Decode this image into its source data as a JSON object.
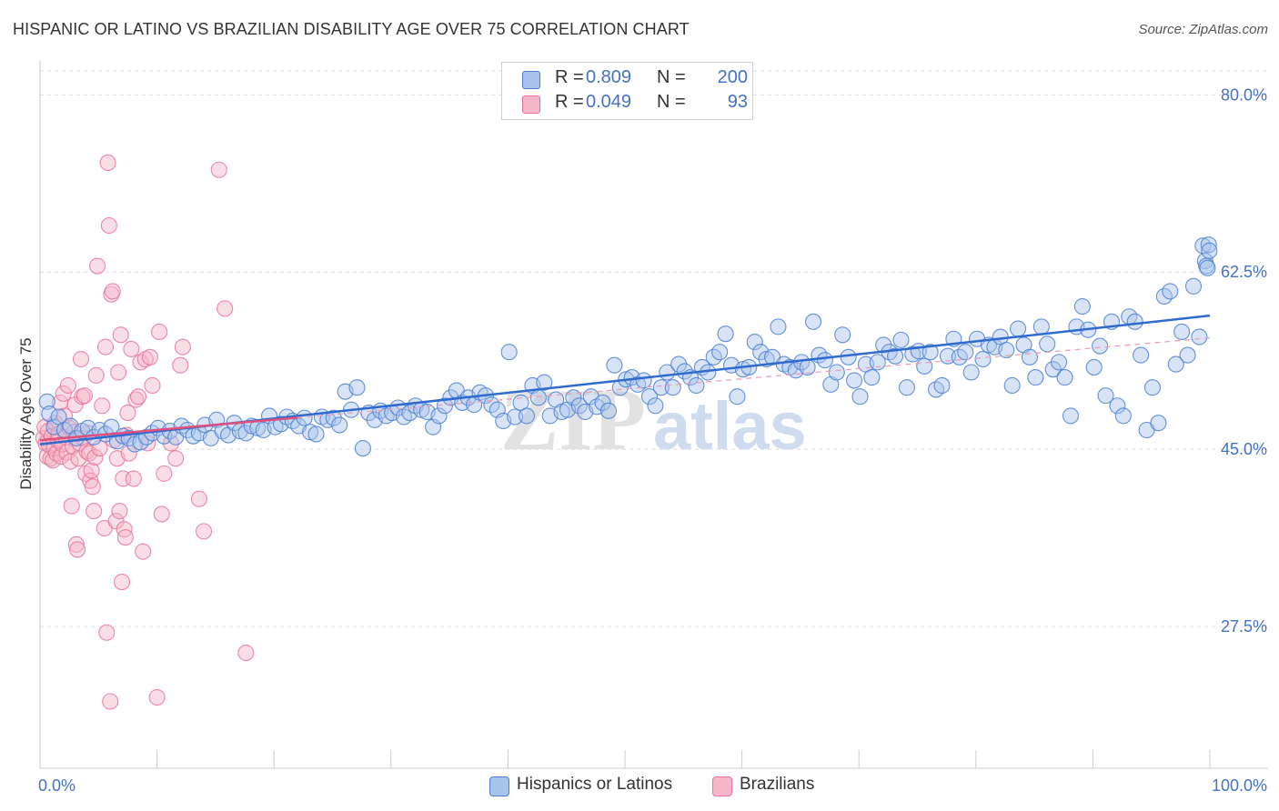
{
  "title": "HISPANIC OR LATINO VS BRAZILIAN DISABILITY AGE OVER 75 CORRELATION CHART",
  "source": "Source: ZipAtlas.com",
  "watermark": {
    "zip": "ZIP",
    "atlas": "atlas"
  },
  "legend_top": [
    {
      "r_label": "R =",
      "r_value": "0.809",
      "n_label": "N =",
      "n_value": "200",
      "color": "#a9c4eb"
    },
    {
      "r_label": "R =",
      "r_value": "0.049",
      "n_label": "N =",
      "n_value": "93",
      "color": "#f4b6c8"
    }
  ],
  "legend_bottom": [
    {
      "label": "Hispanics or Latinos",
      "color": "#a9c4eb"
    },
    {
      "label": "Brazilians",
      "color": "#f4b6c8"
    }
  ],
  "chart_data": {
    "type": "scatter",
    "title": "HISPANIC OR LATINO VS BRAZILIAN DISABILITY AGE OVER 75 CORRELATION CHART",
    "xlabel": "",
    "ylabel": "Disability Age Over 75",
    "xlim": [
      0,
      100
    ],
    "ylim": [
      13.5,
      83.8
    ],
    "x_tick_labels": [
      "0.0%",
      "100.0%"
    ],
    "y_ticks": [
      27.5,
      45.0,
      62.5,
      80.0
    ],
    "y_tick_labels": [
      "27.5%",
      "45.0%",
      "62.5%",
      "80.0%"
    ],
    "grid": "horizontal dashed",
    "legend_position": "top-center and bottom",
    "series": [
      {
        "name": "Hispanics or Latinos",
        "color": "#4a7fd4",
        "fill": "#a9c4eb",
        "R": 0.809,
        "N": 200,
        "trend": {
          "x": [
            0,
            100
          ],
          "y": [
            45.5,
            58.2
          ]
        },
        "points": [
          [
            0.6,
            49.7
          ],
          [
            0.8,
            48.5
          ],
          [
            1.2,
            47.2
          ],
          [
            1.6,
            48.2
          ],
          [
            2.1,
            46.9
          ],
          [
            2.6,
            47.3
          ],
          [
            3.1,
            46.1
          ],
          [
            3.6,
            46.8
          ],
          [
            4.1,
            47.1
          ],
          [
            4.6,
            46.2
          ],
          [
            5.1,
            46.9
          ],
          [
            5.6,
            46.5
          ],
          [
            6.1,
            47.2
          ],
          [
            6.6,
            45.8
          ],
          [
            7.1,
            46.3
          ],
          [
            7.6,
            46.1
          ],
          [
            8.1,
            45.5
          ],
          [
            8.6,
            45.7
          ],
          [
            9.1,
            46.2
          ],
          [
            9.6,
            46.6
          ],
          [
            10.1,
            47.1
          ],
          [
            10.6,
            46.3
          ],
          [
            11.1,
            46.8
          ],
          [
            11.6,
            46.2
          ],
          [
            12.1,
            47.3
          ],
          [
            12.6,
            46.9
          ],
          [
            13.1,
            46.3
          ],
          [
            13.6,
            46.6
          ],
          [
            14.1,
            47.4
          ],
          [
            14.6,
            46.1
          ],
          [
            15.1,
            47.9
          ],
          [
            15.6,
            46.8
          ],
          [
            16.1,
            46.4
          ],
          [
            16.6,
            47.6
          ],
          [
            17.1,
            46.8
          ],
          [
            17.6,
            46.6
          ],
          [
            18.1,
            47.3
          ],
          [
            18.6,
            47.1
          ],
          [
            19.1,
            46.9
          ],
          [
            19.6,
            48.3
          ],
          [
            20.1,
            47.2
          ],
          [
            20.6,
            47.5
          ],
          [
            21.1,
            48.2
          ],
          [
            21.6,
            47.8
          ],
          [
            22.1,
            47.3
          ],
          [
            22.6,
            48.1
          ],
          [
            23.1,
            46.7
          ],
          [
            23.6,
            46.5
          ],
          [
            24.1,
            48.2
          ],
          [
            24.6,
            47.9
          ],
          [
            25.1,
            48.1
          ],
          [
            25.6,
            47.4
          ],
          [
            26.1,
            50.7
          ],
          [
            26.6,
            48.9
          ],
          [
            27.1,
            51.1
          ],
          [
            27.6,
            45.1
          ],
          [
            28.1,
            48.6
          ],
          [
            28.6,
            47.9
          ],
          [
            29.1,
            48.8
          ],
          [
            29.6,
            48.3
          ],
          [
            30.1,
            48.6
          ],
          [
            30.6,
            49.1
          ],
          [
            31.1,
            48.2
          ],
          [
            31.6,
            48.6
          ],
          [
            32.1,
            49.3
          ],
          [
            32.6,
            48.9
          ],
          [
            33.1,
            48.7
          ],
          [
            33.6,
            47.2
          ],
          [
            34.1,
            48.3
          ],
          [
            34.6,
            49.3
          ],
          [
            35.1,
            50.1
          ],
          [
            35.6,
            50.8
          ],
          [
            36.1,
            49.6
          ],
          [
            36.6,
            50.1
          ],
          [
            37.1,
            49.4
          ],
          [
            37.6,
            50.6
          ],
          [
            38.1,
            50.3
          ],
          [
            38.6,
            49.4
          ],
          [
            39.1,
            48.9
          ],
          [
            39.6,
            47.8
          ],
          [
            40.1,
            54.6
          ],
          [
            40.6,
            48.2
          ],
          [
            41.1,
            49.6
          ],
          [
            41.6,
            48.3
          ],
          [
            42.1,
            51.3
          ],
          [
            42.6,
            50.1
          ],
          [
            43.1,
            51.6
          ],
          [
            43.6,
            48.3
          ],
          [
            44.1,
            49.9
          ],
          [
            44.6,
            48.7
          ],
          [
            45.1,
            48.9
          ],
          [
            45.6,
            50.1
          ],
          [
            46.1,
            49.3
          ],
          [
            46.6,
            48.7
          ],
          [
            47.1,
            50.2
          ],
          [
            47.6,
            49.2
          ],
          [
            48.1,
            49.6
          ],
          [
            48.6,
            48.8
          ],
          [
            49.1,
            53.3
          ],
          [
            49.6,
            51.1
          ],
          [
            50.1,
            51.9
          ],
          [
            50.6,
            52.1
          ],
          [
            51.1,
            51.4
          ],
          [
            51.6,
            51.8
          ],
          [
            52.1,
            50.2
          ],
          [
            52.6,
            49.3
          ],
          [
            53.1,
            51.1
          ],
          [
            53.6,
            52.6
          ],
          [
            54.1,
            51.1
          ],
          [
            54.6,
            53.4
          ],
          [
            55.1,
            52.7
          ],
          [
            55.6,
            52.1
          ],
          [
            56.1,
            51.3
          ],
          [
            56.6,
            53.1
          ],
          [
            57.1,
            52.6
          ],
          [
            57.6,
            54.1
          ],
          [
            58.1,
            54.6
          ],
          [
            58.6,
            56.4
          ],
          [
            59.1,
            53.3
          ],
          [
            59.6,
            50.2
          ],
          [
            60.1,
            52.9
          ],
          [
            60.6,
            53.1
          ],
          [
            61.1,
            55.6
          ],
          [
            61.6,
            54.6
          ],
          [
            62.1,
            53.9
          ],
          [
            62.6,
            54.1
          ],
          [
            63.1,
            57.1
          ],
          [
            63.6,
            53.4
          ],
          [
            64.1,
            53.1
          ],
          [
            64.6,
            52.8
          ],
          [
            65.1,
            53.6
          ],
          [
            65.6,
            53.1
          ],
          [
            66.1,
            57.6
          ],
          [
            66.6,
            54.3
          ],
          [
            67.1,
            53.8
          ],
          [
            67.6,
            51.4
          ],
          [
            68.1,
            52.6
          ],
          [
            68.6,
            56.3
          ],
          [
            69.1,
            54.1
          ],
          [
            69.6,
            51.8
          ],
          [
            70.1,
            50.2
          ],
          [
            70.6,
            53.4
          ],
          [
            71.1,
            52.1
          ],
          [
            71.6,
            53.6
          ],
          [
            72.1,
            55.3
          ],
          [
            72.6,
            54.6
          ],
          [
            73.1,
            54.2
          ],
          [
            73.6,
            55.8
          ],
          [
            74.1,
            51.1
          ],
          [
            74.6,
            54.4
          ],
          [
            75.1,
            54.7
          ],
          [
            75.6,
            53.2
          ],
          [
            76.1,
            54.6
          ],
          [
            76.6,
            50.9
          ],
          [
            77.1,
            51.3
          ],
          [
            77.6,
            54.2
          ],
          [
            78.1,
            55.9
          ],
          [
            78.6,
            54.1
          ],
          [
            79.1,
            54.6
          ],
          [
            79.6,
            52.6
          ],
          [
            80.1,
            55.9
          ],
          [
            80.6,
            53.9
          ],
          [
            81.1,
            55.3
          ],
          [
            81.6,
            55.1
          ],
          [
            82.1,
            56.1
          ],
          [
            82.6,
            54.8
          ],
          [
            83.1,
            51.3
          ],
          [
            83.6,
            56.9
          ],
          [
            84.1,
            55.3
          ],
          [
            84.6,
            54.1
          ],
          [
            85.1,
            52.1
          ],
          [
            85.6,
            57.1
          ],
          [
            86.1,
            55.4
          ],
          [
            86.6,
            52.9
          ],
          [
            87.1,
            53.6
          ],
          [
            87.6,
            52.1
          ],
          [
            88.1,
            48.3
          ],
          [
            88.6,
            57.1
          ],
          [
            89.1,
            59.1
          ],
          [
            89.6,
            56.8
          ],
          [
            90.1,
            53.1
          ],
          [
            90.6,
            55.2
          ],
          [
            91.1,
            50.3
          ],
          [
            91.6,
            57.6
          ],
          [
            92.1,
            49.3
          ],
          [
            92.6,
            48.3
          ],
          [
            93.1,
            58.1
          ],
          [
            93.6,
            57.6
          ],
          [
            94.1,
            54.3
          ],
          [
            94.6,
            46.9
          ],
          [
            95.1,
            51.1
          ],
          [
            95.6,
            47.6
          ],
          [
            96.1,
            60.1
          ],
          [
            96.6,
            60.6
          ],
          [
            97.1,
            53.4
          ],
          [
            97.6,
            56.6
          ],
          [
            98.1,
            54.3
          ],
          [
            98.6,
            61.1
          ],
          [
            99.1,
            56.1
          ],
          [
            99.4,
            65.1
          ],
          [
            99.6,
            63.6
          ],
          [
            99.7,
            63.1
          ],
          [
            99.8,
            62.9
          ],
          [
            99.9,
            65.2
          ],
          [
            99.95,
            64.6
          ]
        ]
      },
      {
        "name": "Brazilians",
        "color": "#e8749a",
        "fill": "#f4b6c8",
        "R": 0.049,
        "N": 93,
        "trend": {
          "x": [
            0,
            100
          ],
          "y": [
            45.9,
            56.0
          ]
        },
        "points": [
          [
            0.3,
            46.1
          ],
          [
            0.4,
            47.2
          ],
          [
            0.5,
            45.6
          ],
          [
            0.6,
            44.3
          ],
          [
            0.7,
            46.8
          ],
          [
            0.8,
            45.4
          ],
          [
            0.9,
            44.1
          ],
          [
            1.0,
            46.3
          ],
          [
            1.1,
            43.9
          ],
          [
            1.2,
            45.1
          ],
          [
            1.3,
            47.6
          ],
          [
            1.4,
            44.6
          ],
          [
            1.5,
            45.9
          ],
          [
            1.6,
            46.5
          ],
          [
            1.7,
            49.6
          ],
          [
            1.8,
            44.3
          ],
          [
            1.9,
            45.5
          ],
          [
            2.0,
            50.5
          ],
          [
            2.1,
            48.3
          ],
          [
            2.2,
            46.2
          ],
          [
            2.3,
            44.7
          ],
          [
            2.4,
            51.3
          ],
          [
            2.5,
            47.1
          ],
          [
            2.6,
            43.8
          ],
          [
            2.7,
            39.4
          ],
          [
            2.8,
            45.3
          ],
          [
            2.9,
            46.7
          ],
          [
            3.0,
            49.4
          ],
          [
            3.1,
            35.6
          ],
          [
            3.2,
            35.1
          ],
          [
            3.3,
            44.1
          ],
          [
            3.4,
            45.6
          ],
          [
            3.5,
            53.9
          ],
          [
            3.6,
            50.2
          ],
          [
            3.7,
            46.1
          ],
          [
            3.8,
            50.3
          ],
          [
            3.9,
            42.6
          ],
          [
            4.0,
            44.8
          ],
          [
            4.1,
            46.6
          ],
          [
            4.2,
            44.6
          ],
          [
            4.3,
            41.9
          ],
          [
            4.4,
            42.9
          ],
          [
            4.5,
            41.3
          ],
          [
            4.6,
            38.9
          ],
          [
            4.7,
            44.2
          ],
          [
            4.8,
            52.3
          ],
          [
            4.9,
            63.1
          ],
          [
            5.1,
            45.1
          ],
          [
            5.3,
            49.3
          ],
          [
            5.5,
            37.2
          ],
          [
            5.6,
            55.1
          ],
          [
            5.7,
            26.9
          ],
          [
            5.8,
            73.3
          ],
          [
            5.9,
            67.1
          ],
          [
            6.0,
            20.1
          ],
          [
            6.1,
            60.3
          ],
          [
            6.2,
            60.6
          ],
          [
            6.3,
            45.9
          ],
          [
            6.5,
            37.9
          ],
          [
            6.6,
            44.1
          ],
          [
            6.7,
            52.6
          ],
          [
            6.8,
            38.9
          ],
          [
            6.9,
            56.3
          ],
          [
            7.0,
            31.9
          ],
          [
            7.1,
            42.1
          ],
          [
            7.2,
            37.1
          ],
          [
            7.3,
            36.3
          ],
          [
            7.4,
            46.4
          ],
          [
            7.5,
            48.6
          ],
          [
            7.6,
            44.6
          ],
          [
            7.8,
            54.9
          ],
          [
            8.0,
            42.1
          ],
          [
            8.2,
            49.9
          ],
          [
            8.4,
            50.2
          ],
          [
            8.6,
            53.6
          ],
          [
            8.8,
            34.9
          ],
          [
            9.0,
            53.9
          ],
          [
            9.2,
            45.6
          ],
          [
            9.4,
            54.1
          ],
          [
            9.6,
            51.3
          ],
          [
            10.0,
            20.5
          ],
          [
            10.2,
            56.6
          ],
          [
            10.4,
            38.6
          ],
          [
            10.6,
            42.6
          ],
          [
            11.2,
            45.6
          ],
          [
            11.6,
            44.1
          ],
          [
            12.0,
            53.3
          ],
          [
            12.2,
            55.1
          ],
          [
            13.6,
            40.1
          ],
          [
            14.0,
            36.9
          ],
          [
            15.3,
            72.6
          ],
          [
            15.8,
            58.9
          ],
          [
            17.6,
            24.9
          ]
        ]
      }
    ]
  }
}
